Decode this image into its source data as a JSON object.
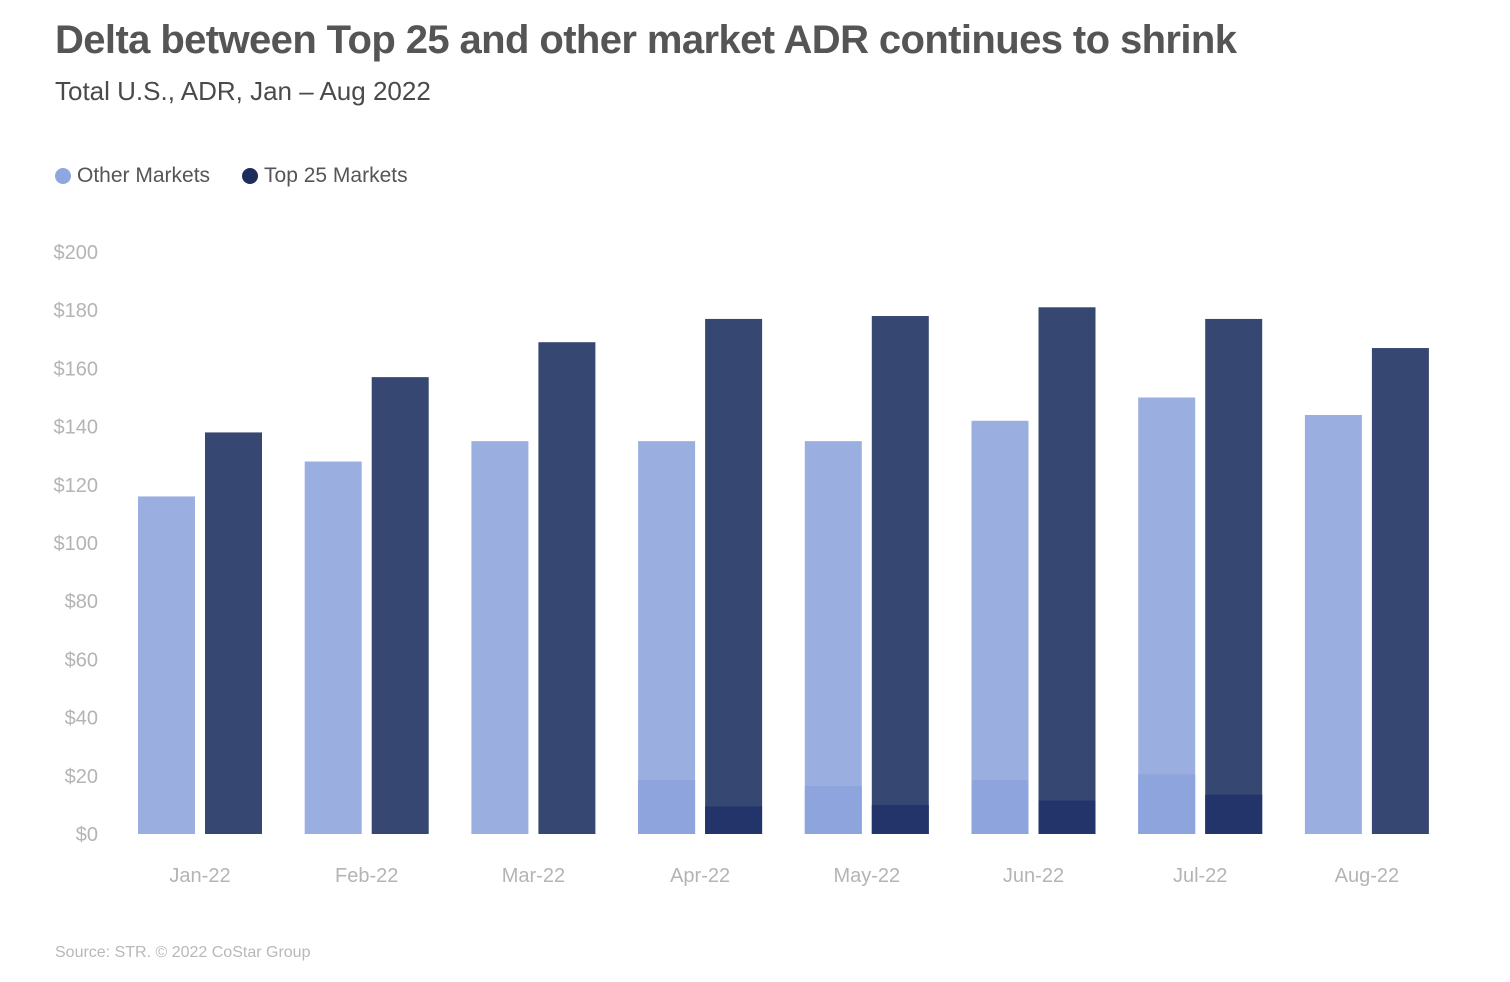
{
  "title": "Delta between Top 25 and other market ADR continues to shrink",
  "subtitle": "Total U.S., ADR, Jan – Aug 2022",
  "source": "Source: STR. © 2022 CoStar Group",
  "colors": {
    "other": "#9aaedf",
    "other_dot": "#8fa6e0",
    "top25": "#364872",
    "top25_dot": "#1f2d5c",
    "other_base": "#8ea4dc",
    "top25_base": "#23346a"
  },
  "chart_data": {
    "type": "bar",
    "categories": [
      "Jan-22",
      "Feb-22",
      "Mar-22",
      "Apr-22",
      "May-22",
      "Jun-22",
      "Jul-22",
      "Aug-22"
    ],
    "series": [
      {
        "name": "Other Markets",
        "values": [
          116,
          128,
          135,
          135,
          135,
          142,
          150,
          144
        ]
      },
      {
        "name": "Top 25 Markets",
        "values": [
          138,
          157,
          169,
          177,
          178,
          181,
          177,
          167
        ]
      }
    ],
    "base_overlay": {
      "other": [
        0,
        0,
        0,
        18.5,
        16.5,
        18.5,
        20.5,
        0
      ],
      "top25": [
        0,
        0,
        0,
        9.5,
        10,
        11.5,
        13.5,
        0
      ]
    },
    "yticks": [
      "$0",
      "$20",
      "$40",
      "$60",
      "$80",
      "$100",
      "$120",
      "$140",
      "$160",
      "$180",
      "$200"
    ],
    "ylim": [
      0,
      200
    ],
    "legend": "top-left",
    "grid": false
  }
}
